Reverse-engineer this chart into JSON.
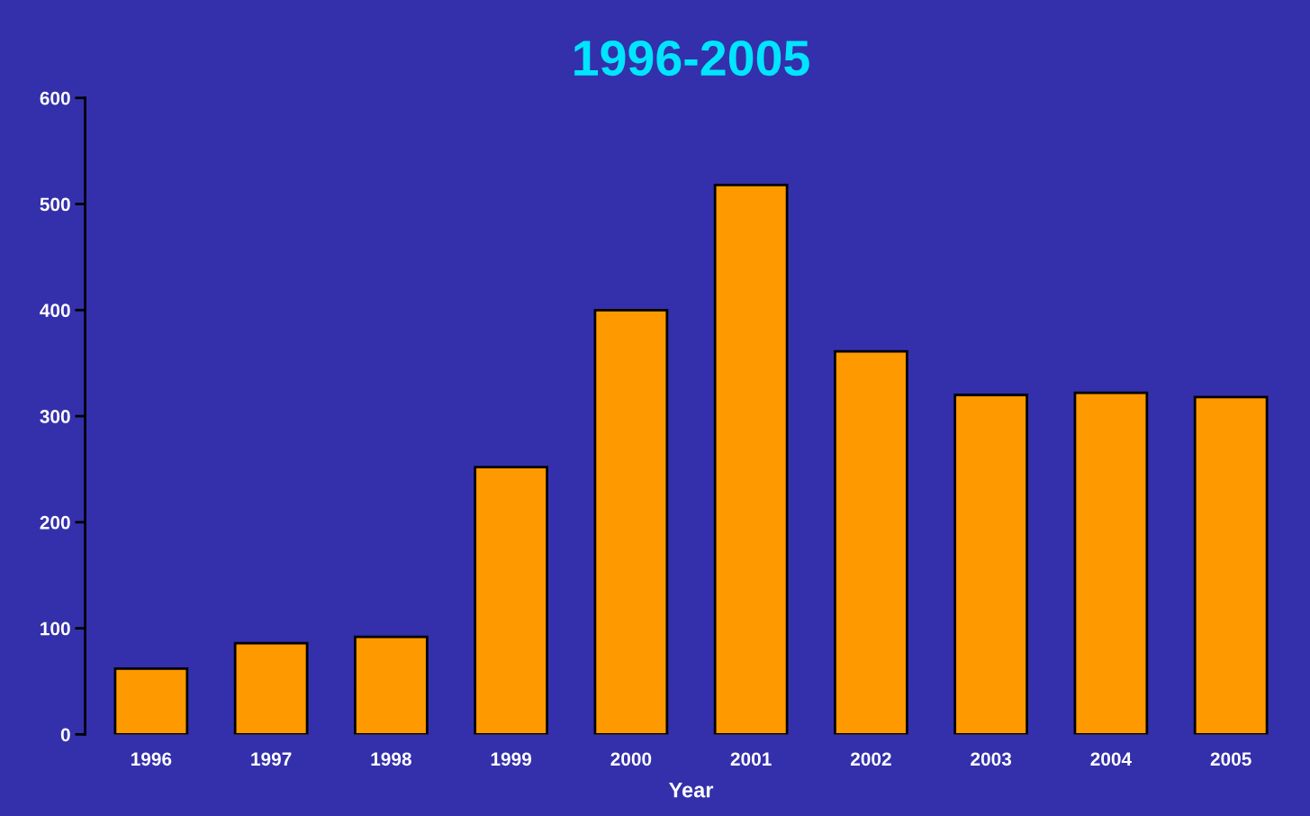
{
  "chart_data": {
    "type": "bar",
    "title": "1996-2005",
    "xlabel": "Year",
    "categories": [
      "1996",
      "1997",
      "1998",
      "1999",
      "2000",
      "2001",
      "2002",
      "2003",
      "2004",
      "2005"
    ],
    "values": [
      62,
      86,
      92,
      252,
      400,
      518,
      361,
      320,
      322,
      318
    ],
    "color": "#ff9900",
    "ylim": [
      0,
      600
    ],
    "yticks": [
      0,
      100,
      200,
      300,
      400,
      500,
      600
    ],
    "grid": false,
    "legend": false
  }
}
